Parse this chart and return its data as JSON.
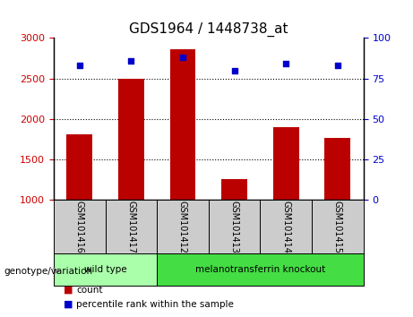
{
  "title": "GDS1964 / 1448738_at",
  "categories": [
    "GSM101416",
    "GSM101417",
    "GSM101412",
    "GSM101413",
    "GSM101414",
    "GSM101415"
  ],
  "bar_values": [
    1810,
    2500,
    2860,
    1260,
    1900,
    1770
  ],
  "scatter_values": [
    83,
    86,
    88,
    80,
    84,
    83
  ],
  "bar_color": "#bb0000",
  "scatter_color": "#0000cc",
  "ylim_left": [
    1000,
    3000
  ],
  "ylim_right": [
    0,
    100
  ],
  "yticks_left": [
    1000,
    1500,
    2000,
    2500,
    3000
  ],
  "yticks_right": [
    0,
    25,
    50,
    75,
    100
  ],
  "grid_lines": [
    1500,
    2000,
    2500
  ],
  "groups": [
    {
      "label": "wild type",
      "indices": [
        0,
        1
      ],
      "color": "#aaffaa"
    },
    {
      "label": "melanotransferrin knockout",
      "indices": [
        2,
        3,
        4,
        5
      ],
      "color": "#44dd44"
    }
  ],
  "group_label": "genotype/variation",
  "legend_count_label": "count",
  "legend_percentile_label": "percentile rank within the sample",
  "bar_width": 0.5,
  "background_color": "#ffffff",
  "plot_bg_color": "#ffffff",
  "label_color_left": "#cc0000",
  "label_color_right": "#0000cc",
  "tick_area_color": "#cccccc"
}
